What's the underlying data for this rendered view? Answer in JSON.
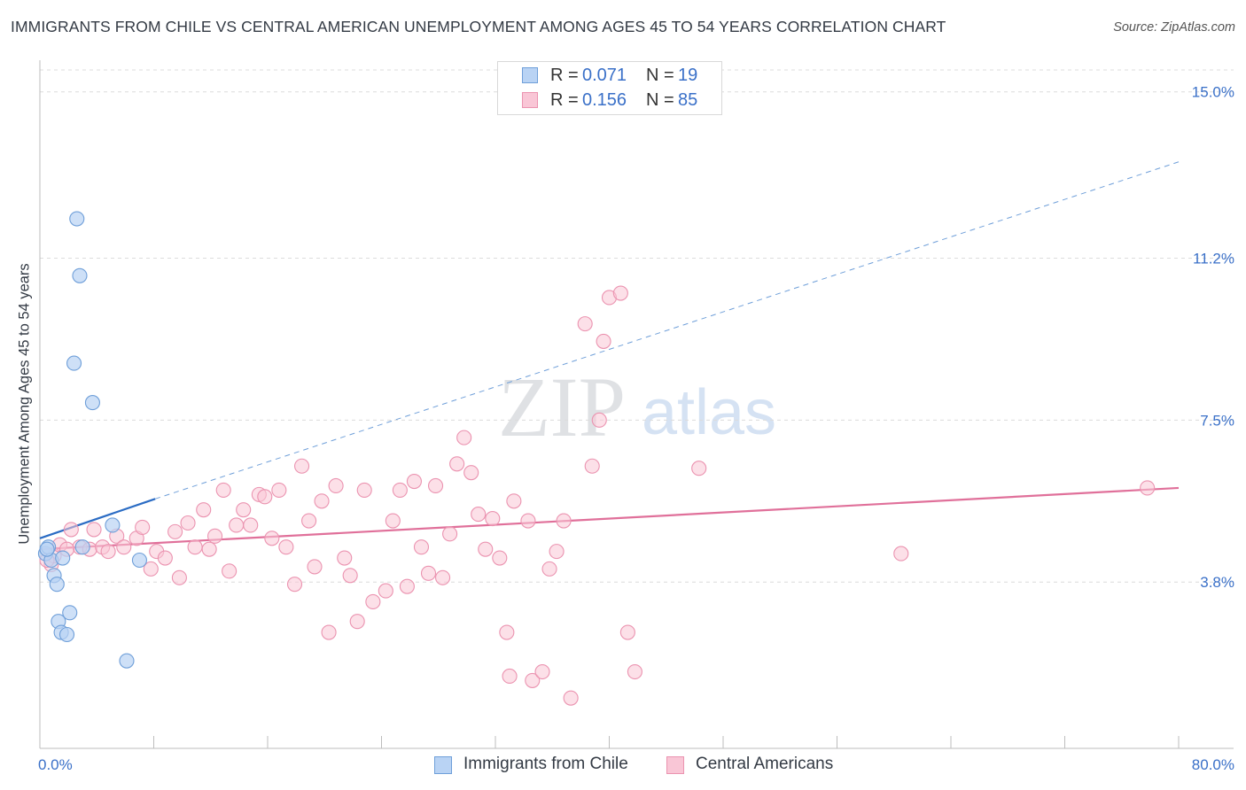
{
  "title": "IMMIGRANTS FROM CHILE VS CENTRAL AMERICAN UNEMPLOYMENT AMONG AGES 45 TO 54 YEARS CORRELATION CHART",
  "source": "Source: ZipAtlas.com",
  "watermark": {
    "zip": "ZIP",
    "atlas": "atlas"
  },
  "colors": {
    "chile_fill": "#b9d3f4",
    "chile_stroke": "#6f9fd9",
    "chile_line": "#2b6cc4",
    "central_fill": "#f9c6d6",
    "central_stroke": "#eb93b0",
    "central_line": "#e0709a",
    "tick_label": "#3a70c8",
    "grid": "#dcdcdc"
  },
  "legend": {
    "rows": [
      {
        "r_label": "R =",
        "r_value": "0.071",
        "n_label": "N =",
        "n_value": "19"
      },
      {
        "r_label": "R =",
        "r_value": "0.156",
        "n_label": "N =",
        "n_value": "85"
      }
    ]
  },
  "bottom_legend": [
    "Immigrants from Chile",
    "Central Americans"
  ],
  "chart_data": {
    "type": "scatter",
    "title": "IMMIGRANTS FROM CHILE VS CENTRAL AMERICAN UNEMPLOYMENT AMONG AGES 45 TO 54 YEARS CORRELATION CHART",
    "xlabel": "",
    "ylabel": "Unemployment Among Ages 45 to 54 years",
    "xlim": [
      0,
      80
    ],
    "ylim": [
      0,
      15.5
    ],
    "x_tick_labels": [
      "0.0%",
      "80.0%"
    ],
    "y_ticks": [
      3.8,
      7.5,
      11.2,
      15.0
    ],
    "y_tick_labels": [
      "3.8%",
      "7.5%",
      "11.2%",
      "15.0%"
    ],
    "grid": true,
    "series": [
      {
        "name": "Immigrants from Chile",
        "r": 0.071,
        "n": 19,
        "trend": {
          "x0": 0,
          "y0": 4.8,
          "x1": 8.1,
          "y1": 5.7,
          "dashed_to_x": 80,
          "dashed_to_y": 13.4
        },
        "points": [
          {
            "x": 0.4,
            "y": 4.45
          },
          {
            "x": 0.6,
            "y": 4.6
          },
          {
            "x": 0.8,
            "y": 4.3
          },
          {
            "x": 1.0,
            "y": 3.95
          },
          {
            "x": 1.2,
            "y": 3.75
          },
          {
            "x": 1.3,
            "y": 2.9
          },
          {
            "x": 1.5,
            "y": 2.65
          },
          {
            "x": 1.6,
            "y": 4.35
          },
          {
            "x": 1.9,
            "y": 2.6
          },
          {
            "x": 2.1,
            "y": 3.1
          },
          {
            "x": 2.4,
            "y": 8.8
          },
          {
            "x": 2.6,
            "y": 12.1
          },
          {
            "x": 2.8,
            "y": 10.8
          },
          {
            "x": 3.0,
            "y": 4.6
          },
          {
            "x": 3.7,
            "y": 7.9
          },
          {
            "x": 5.1,
            "y": 5.1
          },
          {
            "x": 6.1,
            "y": 2.0
          },
          {
            "x": 7.0,
            "y": 4.3
          },
          {
            "x": 0.5,
            "y": 4.55
          }
        ]
      },
      {
        "name": "Central Americans",
        "r": 0.156,
        "n": 85,
        "trend": {
          "x0": 0,
          "y0": 4.55,
          "x1": 80,
          "y1": 5.95
        },
        "points": [
          {
            "x": 0.8,
            "y": 4.2
          },
          {
            "x": 1.0,
            "y": 4.4
          },
          {
            "x": 1.4,
            "y": 4.65
          },
          {
            "x": 2.2,
            "y": 5.0
          },
          {
            "x": 2.8,
            "y": 4.6
          },
          {
            "x": 3.5,
            "y": 4.55
          },
          {
            "x": 3.8,
            "y": 5.0
          },
          {
            "x": 4.4,
            "y": 4.6
          },
          {
            "x": 4.8,
            "y": 4.5
          },
          {
            "x": 5.4,
            "y": 4.85
          },
          {
            "x": 5.9,
            "y": 4.6
          },
          {
            "x": 6.8,
            "y": 4.8
          },
          {
            "x": 7.2,
            "y": 5.05
          },
          {
            "x": 7.8,
            "y": 4.1
          },
          {
            "x": 8.2,
            "y": 4.5
          },
          {
            "x": 8.8,
            "y": 4.35
          },
          {
            "x": 9.5,
            "y": 4.95
          },
          {
            "x": 9.8,
            "y": 3.9
          },
          {
            "x": 10.4,
            "y": 5.15
          },
          {
            "x": 10.9,
            "y": 4.6
          },
          {
            "x": 11.5,
            "y": 5.45
          },
          {
            "x": 11.9,
            "y": 4.55
          },
          {
            "x": 12.3,
            "y": 4.85
          },
          {
            "x": 12.9,
            "y": 5.9
          },
          {
            "x": 13.3,
            "y": 4.05
          },
          {
            "x": 13.8,
            "y": 5.1
          },
          {
            "x": 14.3,
            "y": 5.45
          },
          {
            "x": 14.8,
            "y": 5.1
          },
          {
            "x": 15.4,
            "y": 5.8
          },
          {
            "x": 15.8,
            "y": 5.75
          },
          {
            "x": 16.3,
            "y": 4.8
          },
          {
            "x": 16.8,
            "y": 5.9
          },
          {
            "x": 17.3,
            "y": 4.6
          },
          {
            "x": 17.9,
            "y": 3.75
          },
          {
            "x": 18.4,
            "y": 6.45
          },
          {
            "x": 18.9,
            "y": 5.2
          },
          {
            "x": 19.3,
            "y": 4.15
          },
          {
            "x": 19.8,
            "y": 5.65
          },
          {
            "x": 20.3,
            "y": 2.65
          },
          {
            "x": 20.8,
            "y": 6.0
          },
          {
            "x": 21.4,
            "y": 4.35
          },
          {
            "x": 21.8,
            "y": 3.95
          },
          {
            "x": 22.3,
            "y": 2.9
          },
          {
            "x": 22.8,
            "y": 5.9
          },
          {
            "x": 23.4,
            "y": 3.35
          },
          {
            "x": 24.3,
            "y": 3.6
          },
          {
            "x": 24.8,
            "y": 5.2
          },
          {
            "x": 25.3,
            "y": 5.9
          },
          {
            "x": 25.8,
            "y": 3.7
          },
          {
            "x": 26.3,
            "y": 6.1
          },
          {
            "x": 26.8,
            "y": 4.6
          },
          {
            "x": 27.3,
            "y": 4.0
          },
          {
            "x": 27.8,
            "y": 6.0
          },
          {
            "x": 28.3,
            "y": 3.9
          },
          {
            "x": 28.8,
            "y": 4.9
          },
          {
            "x": 29.3,
            "y": 6.5
          },
          {
            "x": 29.8,
            "y": 7.1
          },
          {
            "x": 30.3,
            "y": 6.3
          },
          {
            "x": 30.8,
            "y": 5.35
          },
          {
            "x": 31.3,
            "y": 4.55
          },
          {
            "x": 31.8,
            "y": 5.25
          },
          {
            "x": 32.3,
            "y": 4.35
          },
          {
            "x": 32.8,
            "y": 2.65
          },
          {
            "x": 33.3,
            "y": 5.65
          },
          {
            "x": 34.3,
            "y": 5.2
          },
          {
            "x": 34.6,
            "y": 1.55
          },
          {
            "x": 35.3,
            "y": 1.75
          },
          {
            "x": 35.8,
            "y": 4.1
          },
          {
            "x": 36.3,
            "y": 4.5
          },
          {
            "x": 36.8,
            "y": 5.2
          },
          {
            "x": 37.3,
            "y": 1.15
          },
          {
            "x": 33.0,
            "y": 1.65
          },
          {
            "x": 38.3,
            "y": 9.7
          },
          {
            "x": 38.8,
            "y": 6.45
          },
          {
            "x": 39.3,
            "y": 7.5
          },
          {
            "x": 39.6,
            "y": 9.3
          },
          {
            "x": 40.0,
            "y": 10.3
          },
          {
            "x": 40.8,
            "y": 10.4
          },
          {
            "x": 41.3,
            "y": 2.65
          },
          {
            "x": 41.8,
            "y": 1.75
          },
          {
            "x": 46.3,
            "y": 6.4
          },
          {
            "x": 60.5,
            "y": 4.45
          },
          {
            "x": 77.8,
            "y": 5.95
          },
          {
            "x": 0.5,
            "y": 4.3
          },
          {
            "x": 1.9,
            "y": 4.55
          }
        ]
      }
    ]
  }
}
